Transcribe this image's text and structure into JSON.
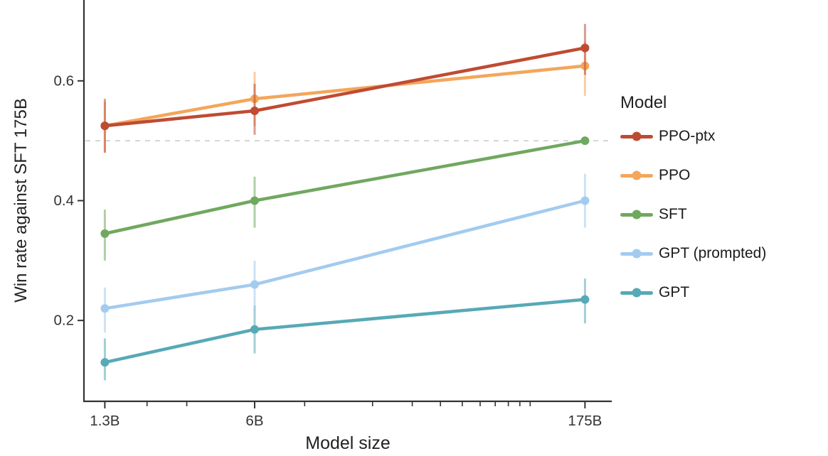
{
  "chart_data": {
    "type": "line",
    "title": "",
    "xlabel": "Model size",
    "ylabel": "Win rate against SFT 175B",
    "x": [
      1.3,
      6,
      175
    ],
    "x_tick_labels": [
      "1.3B",
      "6B",
      "175B"
    ],
    "x_scale": "log",
    "x_minor_ticks": [
      2,
      3,
      10,
      20,
      30,
      40,
      50,
      60,
      70,
      80,
      90,
      100
    ],
    "xlim": [
      1.05,
      230
    ],
    "ylim": [
      0.065,
      0.735
    ],
    "y_ticks": [
      0.2,
      0.4,
      0.6
    ],
    "grid": false,
    "reference_line": {
      "y": 0.5,
      "style": "dashed",
      "color": "#cccccc"
    },
    "legend_title": "Model",
    "legend_position": "right",
    "axis_color": "#333333",
    "text_color": "#1a1a1a",
    "series": [
      {
        "name": "PPO-ptx",
        "color": "#bf4b32",
        "values": [
          0.525,
          0.55,
          0.655
        ],
        "err_low": [
          0.48,
          0.51,
          0.61
        ],
        "err_high": [
          0.57,
          0.595,
          0.695
        ]
      },
      {
        "name": "PPO",
        "color": "#f4a65a",
        "values": [
          0.525,
          0.57,
          0.625
        ],
        "err_low": [
          0.48,
          0.525,
          0.575
        ],
        "err_high": [
          0.565,
          0.615,
          0.665
        ]
      },
      {
        "name": "SFT",
        "color": "#70a85f",
        "values": [
          0.345,
          0.4,
          0.5
        ],
        "err_low": [
          0.3,
          0.355,
          null
        ],
        "err_high": [
          0.385,
          0.44,
          null
        ]
      },
      {
        "name": "GPT (prompted)",
        "color": "#a3cbef",
        "values": [
          0.22,
          0.26,
          0.4
        ],
        "err_low": [
          0.18,
          0.215,
          0.355
        ],
        "err_high": [
          0.255,
          0.3,
          0.445
        ]
      },
      {
        "name": "GPT",
        "color": "#57a9b6",
        "values": [
          0.13,
          0.185,
          0.235
        ],
        "err_low": [
          0.1,
          0.145,
          0.195
        ],
        "err_high": [
          0.17,
          0.225,
          0.27
        ]
      }
    ]
  }
}
